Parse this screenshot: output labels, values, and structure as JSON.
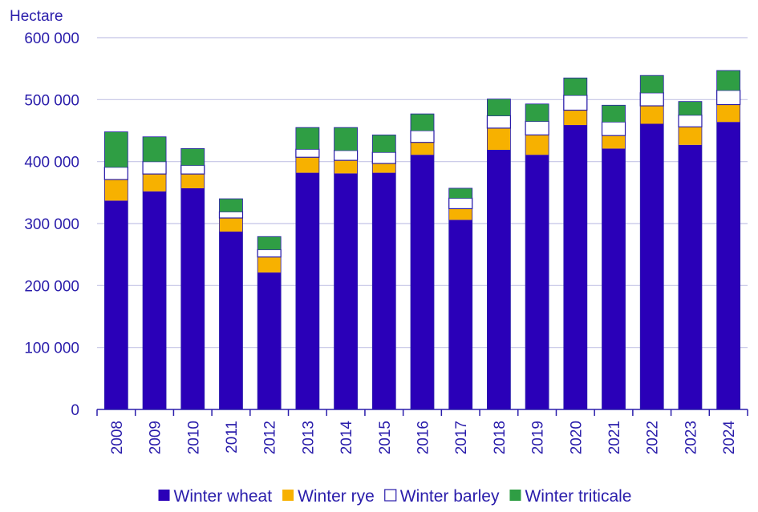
{
  "chart_data": {
    "type": "bar",
    "stacked": true,
    "ylabel": "Hectare",
    "ylim": [
      0,
      600000
    ],
    "yticks": [
      0,
      100000,
      200000,
      300000,
      400000,
      500000,
      600000
    ],
    "ytick_labels": [
      "0",
      "100 000",
      "200 000",
      "300 000",
      "400 000",
      "500 000",
      "600 000"
    ],
    "grid": true,
    "legend_position": "bottom",
    "categories": [
      "2008",
      "2009",
      "2010",
      "2011",
      "2012",
      "2013",
      "2014",
      "2015",
      "2016",
      "2017",
      "2018",
      "2019",
      "2020",
      "2021",
      "2022",
      "2023",
      "2024"
    ],
    "series": [
      {
        "name": "Winter wheat",
        "color": "#2a00b8",
        "values": [
          337000,
          352000,
          357000,
          287000,
          221000,
          382000,
          381000,
          382000,
          411000,
          306000,
          419000,
          411000,
          459000,
          421000,
          461000,
          427000,
          464000
        ]
      },
      {
        "name": "Winter rye",
        "color": "#f7b100",
        "values": [
          34000,
          28000,
          23000,
          22000,
          25000,
          25000,
          21000,
          15000,
          20000,
          18000,
          35000,
          32000,
          24000,
          21000,
          29000,
          29000,
          28000
        ]
      },
      {
        "name": "Winter barley",
        "color": "#ffffff",
        "values": [
          20000,
          20000,
          14000,
          10000,
          12000,
          13000,
          16000,
          18000,
          19000,
          17000,
          20000,
          22000,
          24000,
          22000,
          21000,
          19000,
          23000
        ]
      },
      {
        "name": "Winter triticale",
        "color": "#2f9e44",
        "values": [
          57000,
          40000,
          27000,
          21000,
          21000,
          35000,
          37000,
          28000,
          27000,
          16000,
          27000,
          28000,
          28000,
          27000,
          28000,
          22000,
          32000
        ]
      }
    ]
  },
  "colors": {
    "text": "#2a1dab",
    "grid": "#c4c4e6",
    "axis": "#2a1dab",
    "bar_outline": "#2a1dab"
  }
}
